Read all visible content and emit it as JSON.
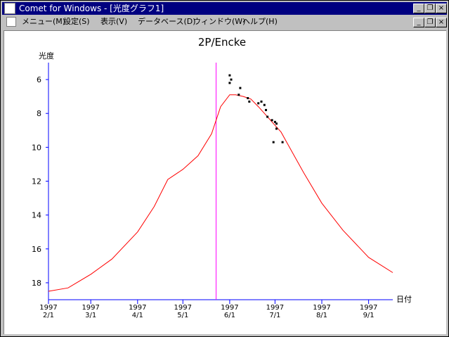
{
  "window": {
    "title": "Comet for Windows - [光度グラフ1]",
    "controls": {
      "minimize": "_",
      "restore": "❐",
      "close": "×"
    }
  },
  "menu": [
    {
      "label": "メニュー(M)"
    },
    {
      "label": "設定(S)"
    },
    {
      "label": "表示(V)"
    },
    {
      "label": "データベース(D)"
    },
    {
      "label": "ウィンドウ(W)"
    },
    {
      "label": "ヘルプ(H)"
    }
  ],
  "chart_data": {
    "type": "line",
    "title": "2P/Encke",
    "ylabel": "光度",
    "xlabel": "日付",
    "y_inverted": true,
    "ylim": [
      19,
      5
    ],
    "y_ticks": [
      6,
      8,
      10,
      12,
      14,
      16,
      18
    ],
    "x_ticks": [
      {
        "date": "1997-02-01",
        "line1": "1997",
        "line2": "2/1"
      },
      {
        "date": "1997-03-01",
        "line1": "1997",
        "line2": "3/1"
      },
      {
        "date": "1997-04-01",
        "line1": "1997",
        "line2": "4/1"
      },
      {
        "date": "1997-05-01",
        "line1": "1997",
        "line2": "5/1"
      },
      {
        "date": "1997-06-01",
        "line1": "1997",
        "line2": "6/1"
      },
      {
        "date": "1997-07-01",
        "line1": "1997",
        "line2": "7/1"
      },
      {
        "date": "1997-08-01",
        "line1": "1997",
        "line2": "8/1"
      },
      {
        "date": "1997-09-01",
        "line1": "1997",
        "line2": "9/1"
      }
    ],
    "xlim": [
      "1997-02-01",
      "1997-09-17"
    ],
    "predicted_curve": {
      "color": "#ff0000",
      "points": [
        [
          "1997-02-01",
          18.5
        ],
        [
          "1997-02-14",
          18.3
        ],
        [
          "1997-03-01",
          17.5
        ],
        [
          "1997-03-15",
          16.6
        ],
        [
          "1997-04-01",
          15.0
        ],
        [
          "1997-04-12",
          13.5
        ],
        [
          "1997-04-21",
          11.9
        ],
        [
          "1997-05-01",
          11.3
        ],
        [
          "1997-05-11",
          10.5
        ],
        [
          "1997-05-20",
          9.2
        ],
        [
          "1997-05-26",
          7.6
        ],
        [
          "1997-06-01",
          6.9
        ],
        [
          "1997-06-05",
          6.9
        ],
        [
          "1997-06-10",
          7.0
        ],
        [
          "1997-06-15",
          7.15
        ],
        [
          "1997-06-20",
          7.6
        ],
        [
          "1997-06-25",
          8.1
        ],
        [
          "1997-06-30",
          8.6
        ],
        [
          "1997-07-05",
          9.1
        ],
        [
          "1997-07-10",
          9.9
        ],
        [
          "1997-07-20",
          11.5
        ],
        [
          "1997-08-01",
          13.3
        ],
        [
          "1997-08-15",
          14.9
        ],
        [
          "1997-09-01",
          16.5
        ],
        [
          "1997-09-17",
          17.4
        ]
      ]
    },
    "observations": {
      "color": "#000000",
      "points": [
        [
          "1997-06-01",
          5.75
        ],
        [
          "1997-06-02",
          6.0
        ],
        [
          "1997-06-01",
          6.2
        ],
        [
          "1997-06-08",
          6.5
        ],
        [
          "1997-06-07",
          6.9
        ],
        [
          "1997-06-13",
          7.1
        ],
        [
          "1997-06-14",
          7.3
        ],
        [
          "1997-06-20",
          7.4
        ],
        [
          "1997-06-22",
          7.3
        ],
        [
          "1997-06-24",
          7.5
        ],
        [
          "1997-06-25",
          7.8
        ],
        [
          "1997-06-26",
          8.2
        ],
        [
          "1997-06-29",
          8.4
        ],
        [
          "1997-07-01",
          8.5
        ],
        [
          "1997-07-02",
          8.6
        ],
        [
          "1997-07-02",
          8.9
        ],
        [
          "1997-06-30",
          9.7
        ],
        [
          "1997-07-06",
          9.7
        ]
      ]
    },
    "today_marker": {
      "date": "1997-05-23",
      "color": "#ff00ff"
    },
    "axis_color": "#0000ff"
  }
}
